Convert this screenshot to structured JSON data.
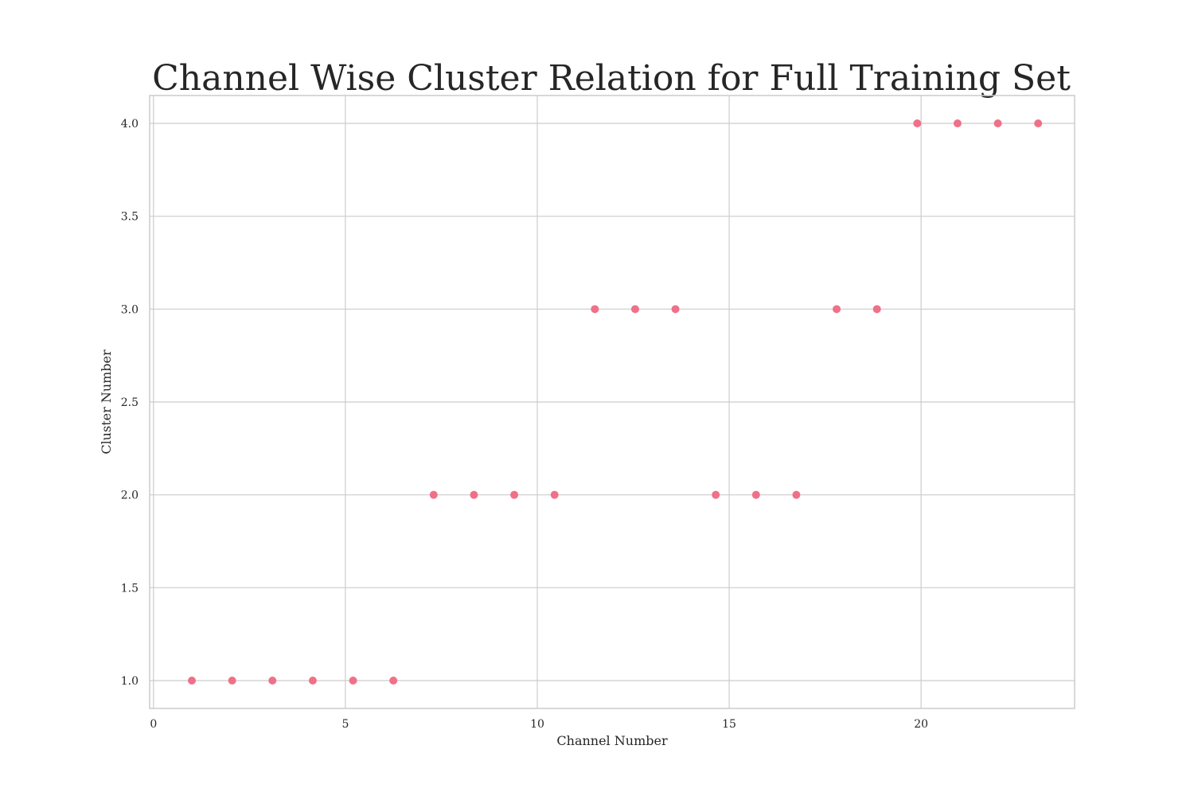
{
  "chart_data": {
    "type": "scatter",
    "title": "Channel Wise Cluster Relation for Full Training Set",
    "xlabel": "Channel Number",
    "ylabel": "Cluster Number",
    "xlim": [
      -0.1,
      24
    ],
    "ylim": [
      0.85,
      4.15
    ],
    "x_ticks": [
      0,
      5,
      10,
      15,
      20
    ],
    "x_tick_labels": [
      "0",
      "5",
      "10",
      "15",
      "20"
    ],
    "y_ticks": [
      1.0,
      1.5,
      2.0,
      2.5,
      3.0,
      3.5,
      4.0
    ],
    "y_tick_labels": [
      "1.0",
      "1.5",
      "2.0",
      "2.5",
      "3.0",
      "3.5",
      "4.0"
    ],
    "grid": true,
    "marker_color": "#f07088",
    "points": [
      {
        "x": 1.0,
        "y": 1.0
      },
      {
        "x": 2.05,
        "y": 1.0
      },
      {
        "x": 3.1,
        "y": 1.0
      },
      {
        "x": 4.15,
        "y": 1.0
      },
      {
        "x": 5.2,
        "y": 1.0
      },
      {
        "x": 6.25,
        "y": 1.0
      },
      {
        "x": 7.3,
        "y": 2.0
      },
      {
        "x": 8.35,
        "y": 2.0
      },
      {
        "x": 9.4,
        "y": 2.0
      },
      {
        "x": 10.45,
        "y": 2.0
      },
      {
        "x": 11.5,
        "y": 3.0
      },
      {
        "x": 12.55,
        "y": 3.0
      },
      {
        "x": 13.6,
        "y": 3.0
      },
      {
        "x": 14.65,
        "y": 2.0
      },
      {
        "x": 15.7,
        "y": 2.0
      },
      {
        "x": 16.75,
        "y": 2.0
      },
      {
        "x": 17.8,
        "y": 3.0
      },
      {
        "x": 18.85,
        "y": 3.0
      },
      {
        "x": 19.9,
        "y": 4.0
      },
      {
        "x": 20.95,
        "y": 4.0
      },
      {
        "x": 22.0,
        "y": 4.0
      },
      {
        "x": 23.05,
        "y": 4.0
      }
    ]
  }
}
